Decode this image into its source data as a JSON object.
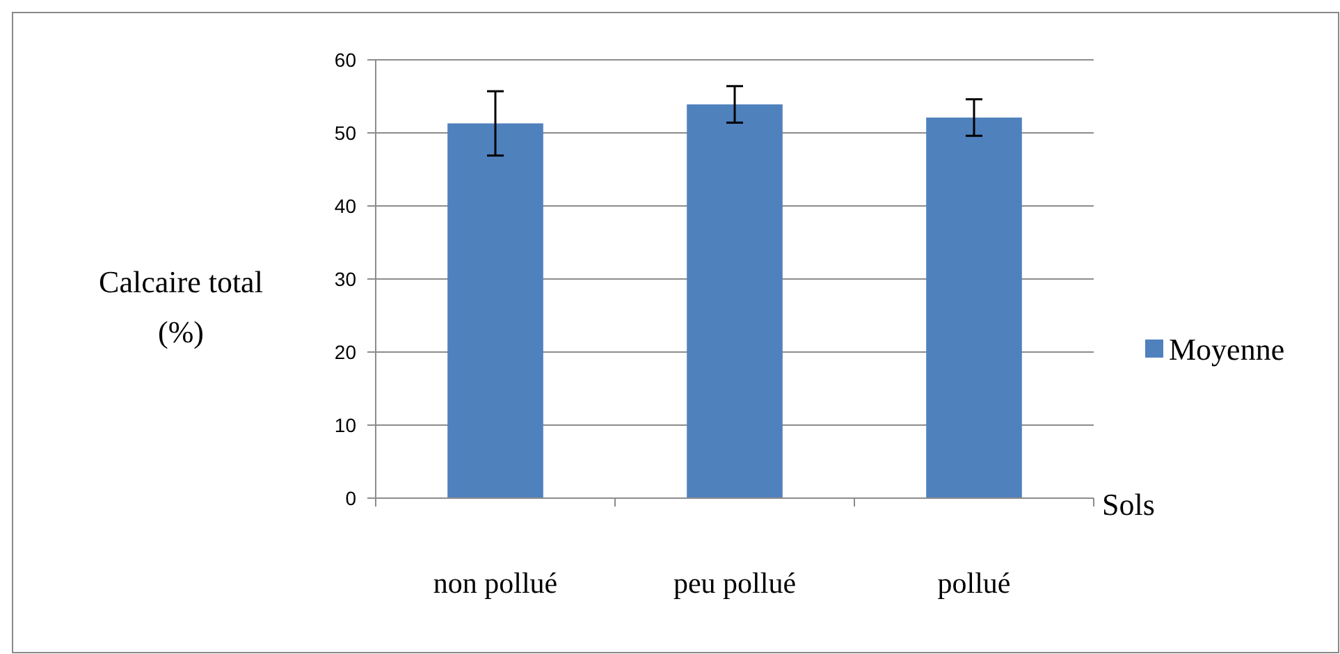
{
  "chart_data": {
    "type": "bar",
    "xlabel": "Sols",
    "ylabel": "Calcaire total\n(%)",
    "categories": [
      "non pollué",
      "peu pollué",
      "pollué"
    ],
    "series": [
      {
        "name": "Moyenne",
        "color": "#4f81bd",
        "values": [
          51.3,
          53.9,
          52.1
        ],
        "errors": [
          4.4,
          2.5,
          2.5
        ]
      }
    ],
    "ylim": [
      0,
      60
    ],
    "yticks": [
      0,
      10,
      20,
      30,
      40,
      50,
      60
    ],
    "grid": "y",
    "legend": "right"
  }
}
